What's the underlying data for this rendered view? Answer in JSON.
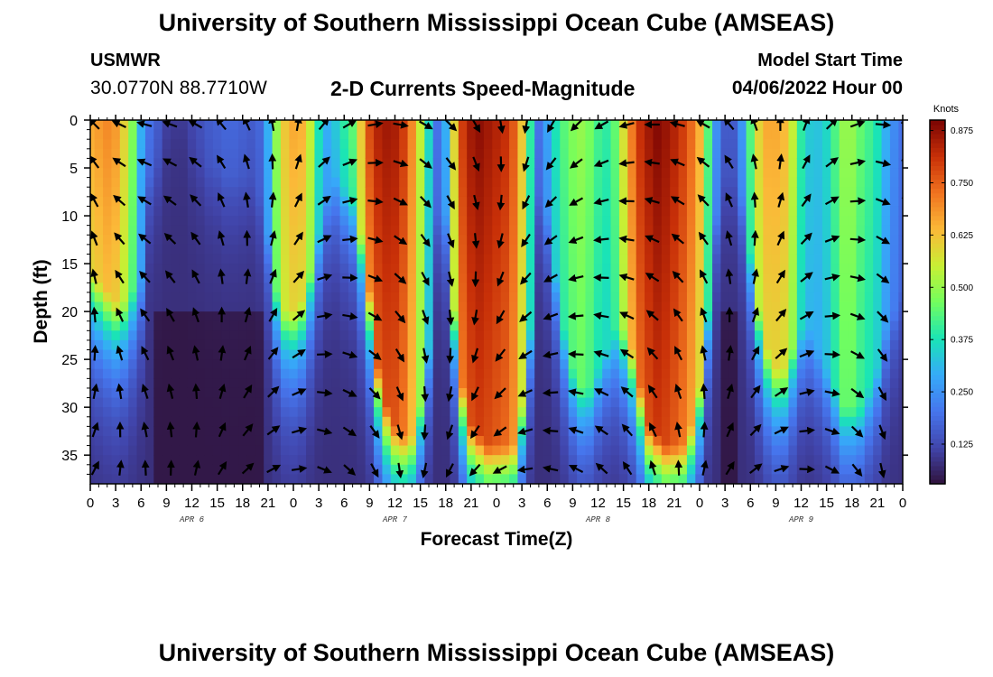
{
  "header": {
    "title": "University of Southern Mississippi Ocean Cube (AMSEAS)",
    "station_name": "USMWR",
    "station_coords": "30.0770N  88.7710W",
    "plot_title": "2-D Currents Speed-Magnitude",
    "model_start_label": "Model Start Time",
    "model_start_value": "04/06/2022 Hour 00"
  },
  "footer": {
    "title": "University of Southern Mississippi Ocean Cube (AMSEAS)"
  },
  "chart_data": {
    "type": "heatmap",
    "title": "2-D Currents Speed-Magnitude",
    "xlabel": "Forecast Time(Z)",
    "ylabel": "Depth (ft)",
    "x_unit": "forecast hour",
    "xlim": [
      0,
      96
    ],
    "ylim": [
      0,
      38
    ],
    "y_inverted": true,
    "x_ticks": [
      0,
      3,
      6,
      9,
      12,
      15,
      18,
      21,
      24,
      27,
      30,
      33,
      36,
      39,
      42,
      45,
      48,
      51,
      54,
      57,
      60,
      63,
      66,
      69,
      72,
      75,
      78,
      81,
      84,
      87,
      90,
      93,
      96
    ],
    "x_tick_labels": [
      "0",
      "3",
      "6",
      "9",
      "12",
      "15",
      "18",
      "21",
      "0",
      "3",
      "6",
      "9",
      "12",
      "15",
      "18",
      "21",
      "0",
      "3",
      "6",
      "9",
      "12",
      "15",
      "18",
      "21",
      "0",
      "3",
      "6",
      "9",
      "12",
      "15",
      "18",
      "21",
      "0"
    ],
    "y_ticks": [
      0,
      5,
      10,
      15,
      20,
      25,
      30,
      35
    ],
    "y_tick_labels": [
      "0",
      "5",
      "10",
      "15",
      "20",
      "25",
      "30",
      "35"
    ],
    "date_labels": [
      {
        "hour": 12,
        "label": "APR 6"
      },
      {
        "hour": 36,
        "label": "APR 7"
      },
      {
        "hour": 60,
        "label": "APR 8"
      },
      {
        "hour": 84,
        "label": "APR 9"
      }
    ],
    "colorbar": {
      "unit_label": "Knots",
      "min": 0.03,
      "max": 0.9,
      "ticks": [
        0.125,
        0.25,
        0.375,
        0.5,
        0.625,
        0.75,
        0.875
      ],
      "tick_labels": [
        "0.125",
        "0.250",
        "0.375",
        "0.500",
        "0.625",
        "0.750",
        "0.875"
      ]
    },
    "speed_field": {
      "note": "Estimated peak speed (knots) per forecast hour; surface value s, peak depth d (ft) where the high-speed column ends",
      "x_hours": [
        0,
        1,
        2,
        3,
        4,
        5,
        6,
        7,
        8,
        9,
        10,
        11,
        12,
        13,
        14,
        15,
        16,
        17,
        18,
        19,
        20,
        21,
        22,
        23,
        24,
        25,
        26,
        27,
        28,
        29,
        30,
        31,
        32,
        33,
        34,
        35,
        36,
        37,
        38,
        39,
        40,
        41,
        42,
        43,
        44,
        45,
        46,
        47,
        48,
        49,
        50,
        51,
        52,
        53,
        54,
        55,
        56,
        57,
        58,
        59,
        60,
        61,
        62,
        63,
        64,
        65,
        66,
        67,
        68,
        69,
        70,
        71,
        72,
        73,
        74,
        75,
        76,
        77,
        78,
        79,
        80,
        81,
        82,
        83,
        84,
        85,
        86,
        87,
        88,
        89,
        90,
        91,
        92,
        93,
        94,
        95,
        96
      ],
      "surface_speed": [
        0.66,
        0.68,
        0.7,
        0.68,
        0.6,
        0.48,
        0.3,
        0.2,
        0.16,
        0.11,
        0.1,
        0.1,
        0.12,
        0.14,
        0.16,
        0.17,
        0.18,
        0.18,
        0.17,
        0.16,
        0.18,
        0.3,
        0.5,
        0.62,
        0.66,
        0.65,
        0.55,
        0.38,
        0.3,
        0.34,
        0.4,
        0.45,
        0.62,
        0.78,
        0.84,
        0.86,
        0.85,
        0.8,
        0.7,
        0.55,
        0.36,
        0.2,
        0.3,
        0.6,
        0.8,
        0.86,
        0.88,
        0.86,
        0.84,
        0.82,
        0.76,
        0.62,
        0.4,
        0.2,
        0.28,
        0.38,
        0.44,
        0.48,
        0.5,
        0.47,
        0.42,
        0.4,
        0.45,
        0.58,
        0.72,
        0.82,
        0.86,
        0.89,
        0.87,
        0.84,
        0.8,
        0.74,
        0.65,
        0.44,
        0.25,
        0.16,
        0.16,
        0.26,
        0.44,
        0.6,
        0.66,
        0.66,
        0.64,
        0.55,
        0.4,
        0.34,
        0.33,
        0.36,
        0.43,
        0.5,
        0.5,
        0.45,
        0.42,
        0.38,
        0.3,
        0.24,
        0.2
      ],
      "column_depth_ft": [
        16,
        17,
        18,
        19,
        19,
        18,
        17,
        6,
        4,
        3,
        3,
        3,
        4,
        4,
        5,
        5,
        6,
        6,
        6,
        6,
        8,
        12,
        18,
        20,
        20,
        19,
        16,
        12,
        8,
        6,
        7,
        8,
        12,
        18,
        26,
        30,
        32,
        33,
        33,
        30,
        24,
        10,
        10,
        20,
        28,
        32,
        33,
        34,
        34,
        34,
        34,
        30,
        22,
        8,
        10,
        16,
        22,
        26,
        28,
        28,
        26,
        24,
        22,
        22,
        24,
        28,
        32,
        33,
        34,
        34,
        34,
        32,
        28,
        20,
        10,
        6,
        6,
        8,
        14,
        20,
        24,
        26,
        26,
        24,
        22,
        22,
        24,
        26,
        28,
        30,
        30,
        30,
        28,
        26,
        22,
        20,
        18
      ]
    },
    "vector_grid": {
      "hours": [
        0,
        3,
        6,
        9,
        12,
        15,
        18,
        21,
        24,
        27,
        30,
        33,
        36,
        39,
        42,
        45,
        48,
        51,
        54,
        57,
        60,
        63,
        66,
        69,
        72,
        75,
        78,
        81,
        84,
        87,
        90,
        93,
        96
      ],
      "depths_ft": [
        0,
        4,
        8,
        12,
        16,
        20,
        24,
        28,
        32,
        36
      ],
      "direction_deg_by_hour": [
        315,
        295,
        285,
        290,
        300,
        320,
        335,
        350,
        10,
        40,
        60,
        80,
        100,
        120,
        135,
        150,
        170,
        190,
        210,
        225,
        240,
        255,
        270,
        285,
        300,
        320,
        340,
        0,
        20,
        45,
        70,
        95,
        110
      ]
    }
  }
}
